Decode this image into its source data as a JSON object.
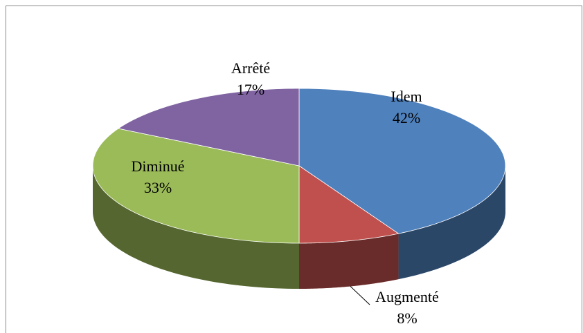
{
  "chart_data": {
    "type": "pie",
    "categories": [
      "Idem",
      "Augmenté",
      "Diminué",
      "Arrêté"
    ],
    "values": [
      42,
      8,
      33,
      17
    ],
    "value_labels": [
      "42%",
      "8%",
      "33%",
      "17%"
    ],
    "colors": [
      "#4f81bd",
      "#c0504d",
      "#9bbb59",
      "#8064a2"
    ]
  }
}
